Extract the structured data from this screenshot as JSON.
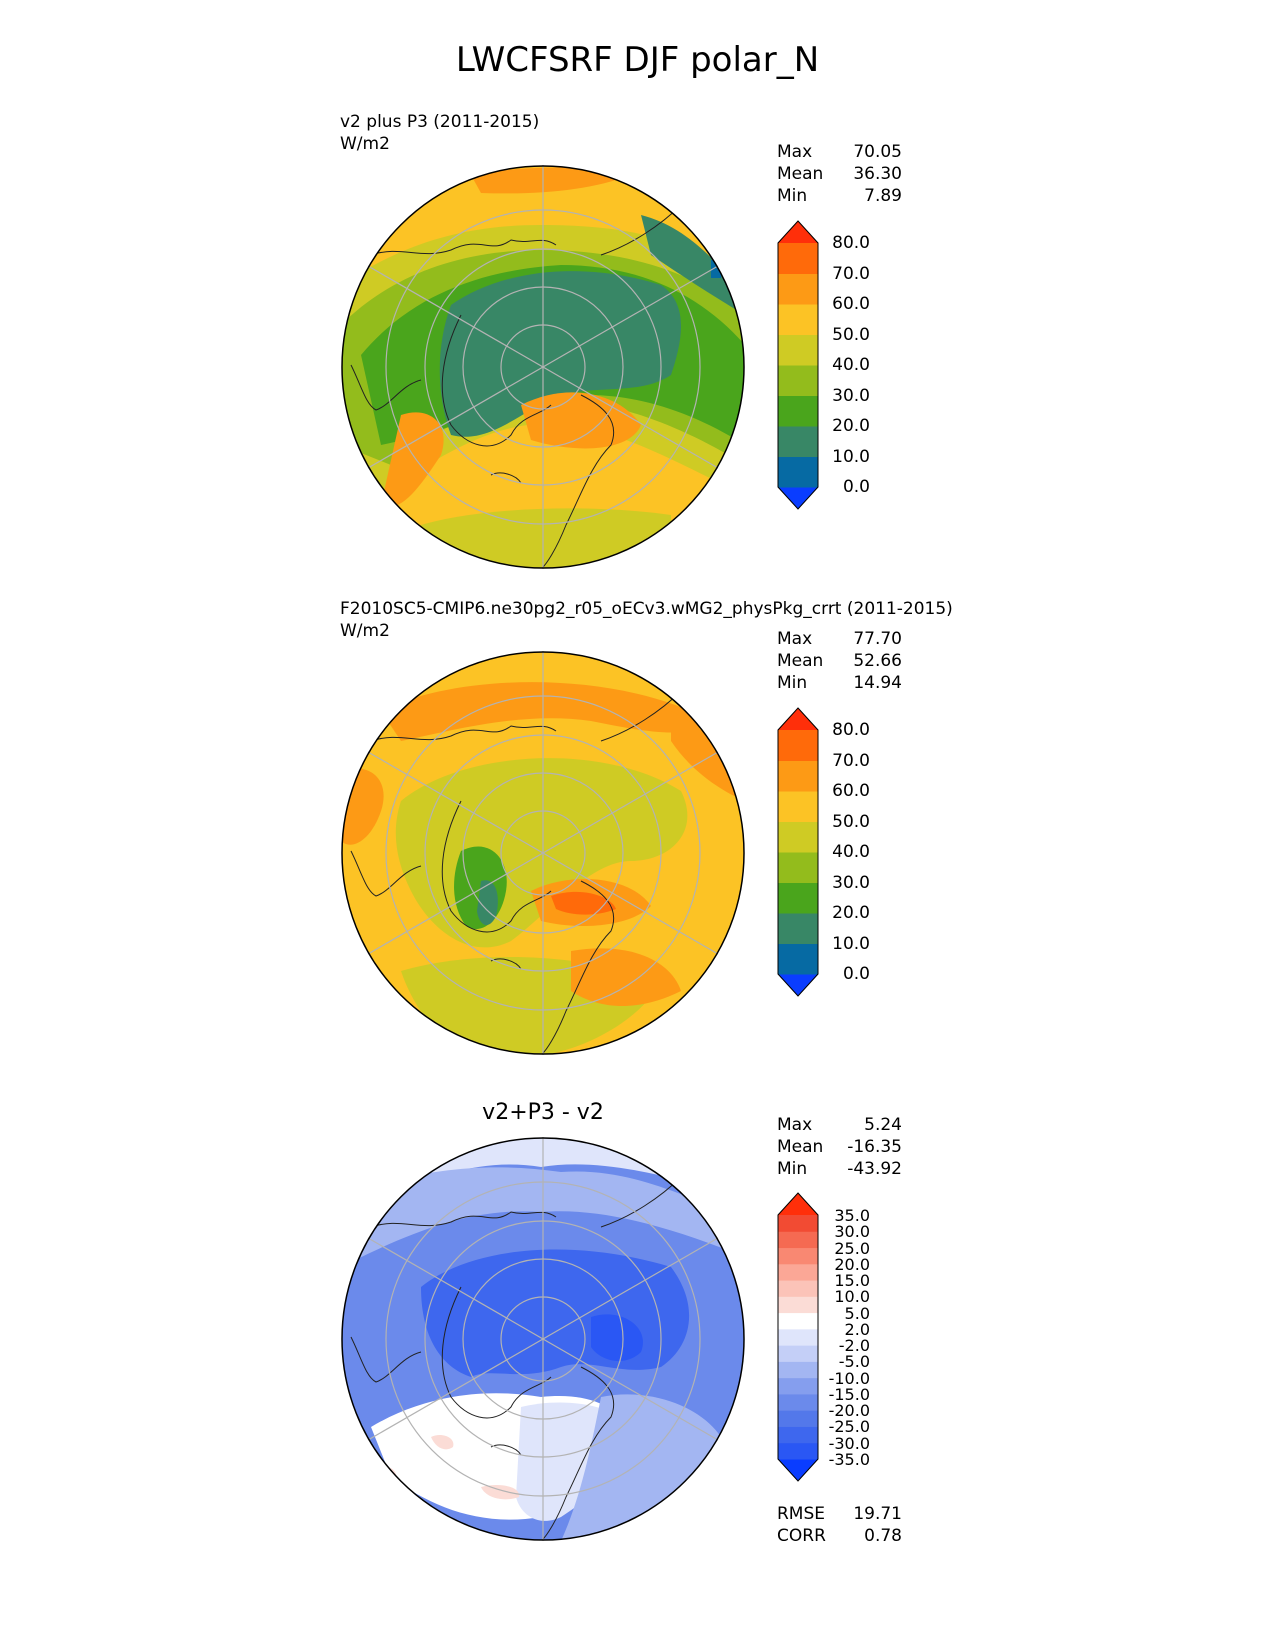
{
  "title": "LWCFSRF DJF polar_N",
  "panels": [
    {
      "id": "test",
      "title_lines": [
        "v2 plus P3 (2011-2015)",
        "W/m2"
      ],
      "stats": {
        "max_label": "Max",
        "max": "70.05",
        "mean_label": "Mean",
        "mean": "36.30",
        "min_label": "Min",
        "min": "7.89"
      },
      "colorbar": {
        "ticks": [
          "80.0",
          "70.0",
          "60.0",
          "50.0",
          "40.0",
          "30.0",
          "20.0",
          "10.0",
          "0.0"
        ],
        "colors": [
          "#0a3dff",
          "#066aa3",
          "#388766",
          "#4aa51c",
          "#93bc1c",
          "#cfcb24",
          "#fcc325",
          "#fd9a15",
          "#ff6a0a",
          "#ff2f0a"
        ]
      }
    },
    {
      "id": "ref",
      "title_lines": [
        "F2010SC5-CMIP6.ne30pg2_r05_oECv3.wMG2_physPkg_crrt (2011-2015)",
        "W/m2"
      ],
      "stats": {
        "max_label": "Max",
        "max": "77.70",
        "mean_label": "Mean",
        "mean": "52.66",
        "min_label": "Min",
        "min": "14.94"
      },
      "colorbar": {
        "ticks": [
          "80.0",
          "70.0",
          "60.0",
          "50.0",
          "40.0",
          "30.0",
          "20.0",
          "10.0",
          "0.0"
        ],
        "colors": [
          "#0a3dff",
          "#066aa3",
          "#388766",
          "#4aa51c",
          "#93bc1c",
          "#cfcb24",
          "#fcc325",
          "#fd9a15",
          "#ff6a0a",
          "#ff2f0a"
        ]
      }
    },
    {
      "id": "diff",
      "center_title": "v2+P3 - v2",
      "stats": {
        "max_label": "Max",
        "max": "5.24",
        "mean_label": "Mean",
        "mean": "-16.35",
        "min_label": "Min",
        "min": "-43.92"
      },
      "colorbar": {
        "ticks": [
          "35.0",
          "30.0",
          "25.0",
          "20.0",
          "15.0",
          "10.0",
          "5.0",
          "2.0",
          "-2.0",
          "-5.0",
          "-10.0",
          "-15.0",
          "-20.0",
          "-25.0",
          "-30.0",
          "-35.0"
        ],
        "colors": [
          "#0a3dff",
          "#2a57f4",
          "#3e67ee",
          "#5378ea",
          "#6b8aeb",
          "#859eee",
          "#a3b6f2",
          "#c4cff7",
          "#dfe5fb",
          "#ffffff",
          "#fbdcd6",
          "#fbc3b8",
          "#fba796",
          "#f98872",
          "#f56a52",
          "#f24b33",
          "#ff2f0a"
        ]
      },
      "metrics": {
        "rmse_label": "RMSE",
        "rmse": "19.71",
        "corr_label": "CORR",
        "corr": "0.78"
      }
    }
  ]
}
